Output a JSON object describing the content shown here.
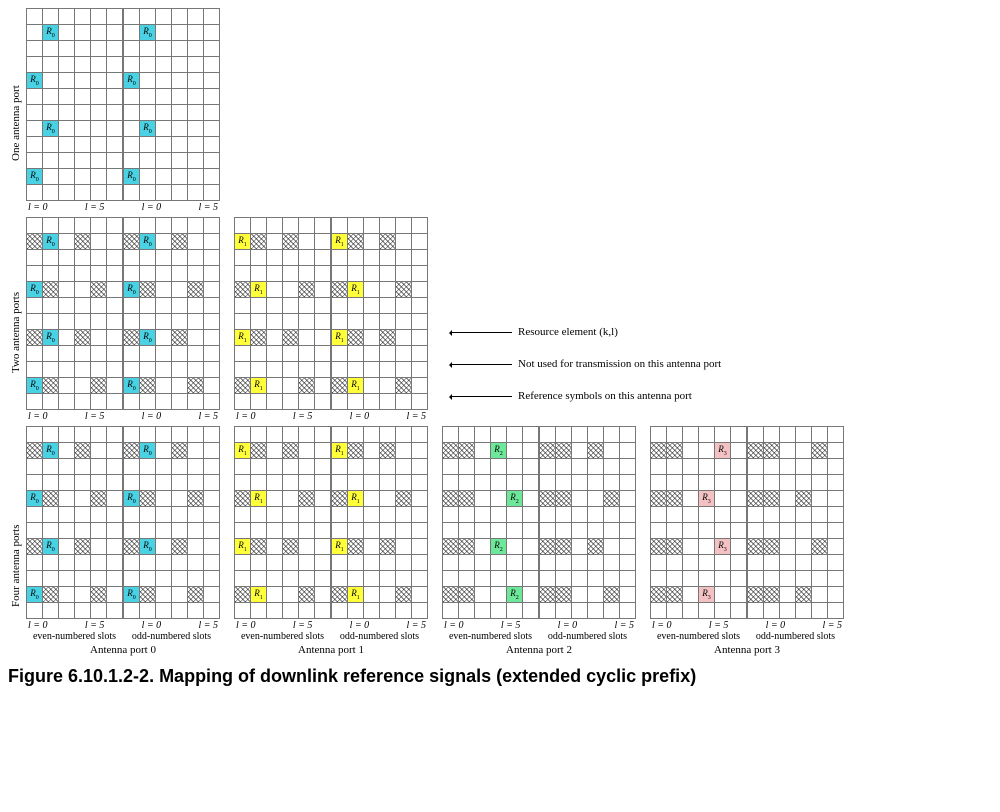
{
  "figure": {
    "caption": "Figure 6.10.1.2-2. Mapping of downlink reference signals (extended cyclic prefix)",
    "rows_per_slot": 12,
    "cols_per_slot": 6,
    "axis_labels": {
      "left": "l = 0",
      "right": "l = 5"
    },
    "slot_labels": {
      "even": "even-numbered slots",
      "odd": "odd-numbered slots"
    },
    "row_groups": [
      {
        "label": "One antenna port",
        "ports_shown": 1
      },
      {
        "label": "Two antenna ports",
        "ports_shown": 2
      },
      {
        "label": "Four antenna ports",
        "ports_shown": 4
      }
    ],
    "port_labels": [
      "Antenna port 0",
      "Antenna port 1",
      "Antenna port 2",
      "Antenna port 3"
    ],
    "colors": {
      "port0": "#49d2e3",
      "port1": "#ffff3a",
      "port2": "#6de89a",
      "port3": "#f4c2c2",
      "hatch": "crosshatch",
      "grid_border": "#777777",
      "background": "#ffffff"
    },
    "ref_symbol_texts": [
      "R0",
      "R1",
      "R2",
      "R3"
    ],
    "legend": {
      "resource_element": "Resource element (k,l)",
      "not_used": "Not used for transmission on this antenna port",
      "ref_symbols": "Reference symbols on this antenna port"
    },
    "patterns": {
      "comment": "Cells filled from top-left, row index r=0..11 (top to bottom), col l=0..5. 'c' = colored reference symbol for that port, 'x' = hatched (not used).",
      "one_port": {
        "port0": {
          "even": {
            "c": [
              [
                1,
                1
              ],
              [
                4,
                0
              ],
              [
                7,
                1
              ],
              [
                10,
                0
              ]
            ],
            "x": []
          },
          "odd": {
            "c": [
              [
                1,
                1
              ],
              [
                4,
                0
              ],
              [
                7,
                1
              ],
              [
                10,
                0
              ]
            ],
            "x": []
          }
        }
      },
      "two_ports": {
        "port0": {
          "even": {
            "c": [
              [
                1,
                1
              ],
              [
                4,
                0
              ],
              [
                7,
                1
              ],
              [
                10,
                0
              ]
            ],
            "x": [
              [
                1,
                0
              ],
              [
                4,
                1
              ],
              [
                7,
                0
              ],
              [
                10,
                1
              ],
              [
                1,
                3
              ],
              [
                4,
                4
              ],
              [
                7,
                3
              ],
              [
                10,
                4
              ]
            ]
          },
          "odd": {
            "c": [
              [
                1,
                1
              ],
              [
                4,
                0
              ],
              [
                7,
                1
              ],
              [
                10,
                0
              ]
            ],
            "x": [
              [
                1,
                0
              ],
              [
                4,
                1
              ],
              [
                7,
                0
              ],
              [
                10,
                1
              ],
              [
                1,
                3
              ],
              [
                4,
                4
              ],
              [
                7,
                3
              ],
              [
                10,
                4
              ]
            ]
          }
        },
        "port1": {
          "even": {
            "c": [
              [
                1,
                0
              ],
              [
                4,
                1
              ],
              [
                7,
                0
              ],
              [
                10,
                1
              ]
            ],
            "x": [
              [
                1,
                1
              ],
              [
                4,
                0
              ],
              [
                7,
                1
              ],
              [
                10,
                0
              ],
              [
                1,
                3
              ],
              [
                4,
                4
              ],
              [
                7,
                3
              ],
              [
                10,
                4
              ]
            ]
          },
          "odd": {
            "c": [
              [
                1,
                0
              ],
              [
                4,
                1
              ],
              [
                7,
                0
              ],
              [
                10,
                1
              ]
            ],
            "x": [
              [
                1,
                1
              ],
              [
                4,
                0
              ],
              [
                7,
                1
              ],
              [
                10,
                0
              ],
              [
                1,
                3
              ],
              [
                4,
                4
              ],
              [
                7,
                3
              ],
              [
                10,
                4
              ]
            ]
          }
        }
      },
      "four_ports": {
        "port0": {
          "even": {
            "c": [
              [
                1,
                1
              ],
              [
                4,
                0
              ],
              [
                7,
                1
              ],
              [
                10,
                0
              ]
            ],
            "x": [
              [
                1,
                0
              ],
              [
                4,
                1
              ],
              [
                7,
                0
              ],
              [
                10,
                1
              ],
              [
                1,
                3
              ],
              [
                4,
                4
              ],
              [
                7,
                3
              ],
              [
                10,
                4
              ]
            ]
          },
          "odd": {
            "c": [
              [
                1,
                1
              ],
              [
                4,
                0
              ],
              [
                7,
                1
              ],
              [
                10,
                0
              ]
            ],
            "x": [
              [
                1,
                0
              ],
              [
                4,
                1
              ],
              [
                7,
                0
              ],
              [
                10,
                1
              ],
              [
                1,
                3
              ],
              [
                4,
                4
              ],
              [
                7,
                3
              ],
              [
                10,
                4
              ]
            ]
          }
        },
        "port1": {
          "even": {
            "c": [
              [
                1,
                0
              ],
              [
                4,
                1
              ],
              [
                7,
                0
              ],
              [
                10,
                1
              ]
            ],
            "x": [
              [
                1,
                1
              ],
              [
                4,
                0
              ],
              [
                7,
                1
              ],
              [
                10,
                0
              ],
              [
                1,
                3
              ],
              [
                4,
                4
              ],
              [
                7,
                3
              ],
              [
                10,
                4
              ]
            ]
          },
          "odd": {
            "c": [
              [
                1,
                0
              ],
              [
                4,
                1
              ],
              [
                7,
                0
              ],
              [
                10,
                1
              ]
            ],
            "x": [
              [
                1,
                1
              ],
              [
                4,
                0
              ],
              [
                7,
                1
              ],
              [
                10,
                0
              ],
              [
                1,
                3
              ],
              [
                4,
                4
              ],
              [
                7,
                3
              ],
              [
                10,
                4
              ]
            ]
          }
        },
        "port2": {
          "even": {
            "c": [
              [
                1,
                3
              ],
              [
                4,
                4
              ],
              [
                7,
                3
              ],
              [
                10,
                4
              ]
            ],
            "x": [
              [
                1,
                0
              ],
              [
                1,
                1
              ],
              [
                4,
                0
              ],
              [
                4,
                1
              ],
              [
                7,
                0
              ],
              [
                7,
                1
              ],
              [
                10,
                0
              ],
              [
                10,
                1
              ]
            ]
          },
          "odd": {
            "c": [],
            "x": [
              [
                1,
                0
              ],
              [
                1,
                1
              ],
              [
                4,
                0
              ],
              [
                4,
                1
              ],
              [
                7,
                0
              ],
              [
                7,
                1
              ],
              [
                10,
                0
              ],
              [
                10,
                1
              ],
              [
                1,
                3
              ],
              [
                4,
                4
              ],
              [
                7,
                3
              ],
              [
                10,
                4
              ]
            ]
          }
        },
        "port3": {
          "even": {
            "c": [
              [
                1,
                4
              ],
              [
                4,
                3
              ],
              [
                7,
                4
              ],
              [
                10,
                3
              ]
            ],
            "x": [
              [
                1,
                0
              ],
              [
                1,
                1
              ],
              [
                4,
                0
              ],
              [
                4,
                1
              ],
              [
                7,
                0
              ],
              [
                7,
                1
              ],
              [
                10,
                0
              ],
              [
                10,
                1
              ]
            ]
          },
          "odd": {
            "c": [],
            "x": [
              [
                1,
                0
              ],
              [
                1,
                1
              ],
              [
                4,
                0
              ],
              [
                4,
                1
              ],
              [
                7,
                0
              ],
              [
                7,
                1
              ],
              [
                10,
                0
              ],
              [
                10,
                1
              ],
              [
                1,
                4
              ],
              [
                4,
                3
              ],
              [
                7,
                4
              ],
              [
                10,
                3
              ]
            ]
          }
        }
      }
    }
  }
}
